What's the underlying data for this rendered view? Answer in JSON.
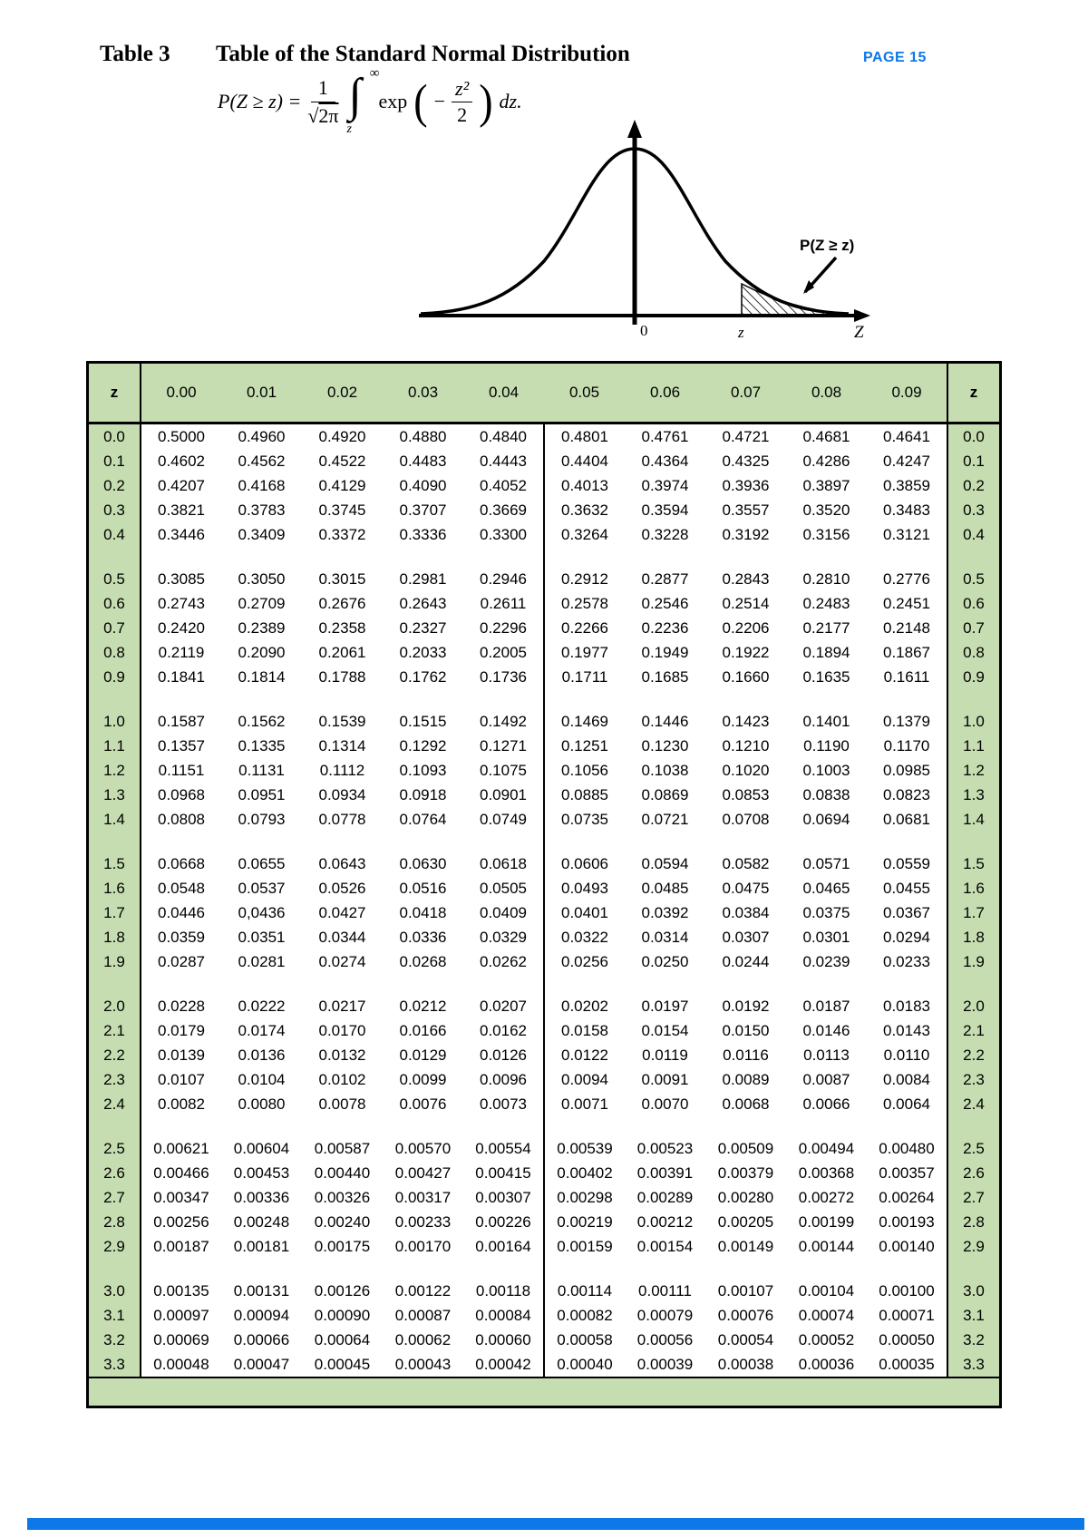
{
  "page": {
    "table_label": "Table 3",
    "title": "Table of the Standard Normal Distribution",
    "page_badge": "PAGE 15"
  },
  "formula": {
    "lhs": "P(Z ≥ z) =",
    "num": "1",
    "sqrt_sign": "√",
    "sqrt_arg": "2π",
    "int_sign": "∫",
    "int_upper": "∞",
    "int_lower": "z",
    "exp_label": "exp",
    "paren_open": "(",
    "minus": "−",
    "exp_num": "z²",
    "exp_den": "2",
    "paren_close": ")",
    "dz": "dz."
  },
  "diagram": {
    "area_label": "P(Z ≥ z)",
    "origin_label": "0",
    "z_label": "z",
    "axis_label": "Z"
  },
  "colors": {
    "table_green": "#c5ddb1",
    "accent_blue": "#0d78e8"
  },
  "table": {
    "corner_label": "z",
    "col_headers": [
      "0.00",
      "0.01",
      "0.02",
      "0.03",
      "0.04",
      "0.05",
      "0.06",
      "0.07",
      "0.08",
      "0.09"
    ],
    "groups": [
      {
        "rows": [
          {
            "z": "0.0",
            "values": [
              "0.5000",
              "0.4960",
              "0.4920",
              "0.4880",
              "0.4840",
              "0.4801",
              "0.4761",
              "0.4721",
              "0.4681",
              "0.4641"
            ]
          },
          {
            "z": "0.1",
            "values": [
              "0.4602",
              "0.4562",
              "0.4522",
              "0.4483",
              "0.4443",
              "0.4404",
              "0.4364",
              "0.4325",
              "0.4286",
              "0.4247"
            ]
          },
          {
            "z": "0.2",
            "values": [
              "0.4207",
              "0.4168",
              "0.4129",
              "0.4090",
              "0.4052",
              "0.4013",
              "0.3974",
              "0.3936",
              "0.3897",
              "0.3859"
            ]
          },
          {
            "z": "0.3",
            "values": [
              "0.3821",
              "0.3783",
              "0.3745",
              "0.3707",
              "0.3669",
              "0.3632",
              "0.3594",
              "0.3557",
              "0.3520",
              "0.3483"
            ]
          },
          {
            "z": "0.4",
            "values": [
              "0.3446",
              "0.3409",
              "0.3372",
              "0.3336",
              "0.3300",
              "0.3264",
              "0.3228",
              "0.3192",
              "0.3156",
              "0.3121"
            ]
          }
        ]
      },
      {
        "rows": [
          {
            "z": "0.5",
            "values": [
              "0.3085",
              "0.3050",
              "0.3015",
              "0.2981",
              "0.2946",
              "0.2912",
              "0.2877",
              "0.2843",
              "0.2810",
              "0.2776"
            ]
          },
          {
            "z": "0.6",
            "values": [
              "0.2743",
              "0.2709",
              "0.2676",
              "0.2643",
              "0.2611",
              "0.2578",
              "0.2546",
              "0.2514",
              "0.2483",
              "0.2451"
            ]
          },
          {
            "z": "0.7",
            "values": [
              "0.2420",
              "0.2389",
              "0.2358",
              "0.2327",
              "0.2296",
              "0.2266",
              "0.2236",
              "0.2206",
              "0.2177",
              "0.2148"
            ]
          },
          {
            "z": "0.8",
            "values": [
              "0.2119",
              "0.2090",
              "0.2061",
              "0.2033",
              "0.2005",
              "0.1977",
              "0.1949",
              "0.1922",
              "0.1894",
              "0.1867"
            ]
          },
          {
            "z": "0.9",
            "values": [
              "0.1841",
              "0.1814",
              "0.1788",
              "0.1762",
              "0.1736",
              "0.1711",
              "0.1685",
              "0.1660",
              "0.1635",
              "0.1611"
            ]
          }
        ]
      },
      {
        "rows": [
          {
            "z": "1.0",
            "values": [
              "0.1587",
              "0.1562",
              "0.1539",
              "0.1515",
              "0.1492",
              "0.1469",
              "0.1446",
              "0.1423",
              "0.1401",
              "0.1379"
            ]
          },
          {
            "z": "1.1",
            "values": [
              "0.1357",
              "0.1335",
              "0.1314",
              "0.1292",
              "0.1271",
              "0.1251",
              "0.1230",
              "0.1210",
              "0.1190",
              "0.1170"
            ]
          },
          {
            "z": "1.2",
            "values": [
              "0.1151",
              "0.1131",
              "0.1112",
              "0.1093",
              "0.1075",
              "0.1056",
              "0.1038",
              "0.1020",
              "0.1003",
              "0.0985"
            ]
          },
          {
            "z": "1.3",
            "values": [
              "0.0968",
              "0.0951",
              "0.0934",
              "0.0918",
              "0.0901",
              "0.0885",
              "0.0869",
              "0.0853",
              "0.0838",
              "0.0823"
            ]
          },
          {
            "z": "1.4",
            "values": [
              "0.0808",
              "0.0793",
              "0.0778",
              "0.0764",
              "0.0749",
              "0.0735",
              "0.0721",
              "0.0708",
              "0.0694",
              "0.0681"
            ]
          }
        ]
      },
      {
        "rows": [
          {
            "z": "1.5",
            "values": [
              "0.0668",
              "0.0655",
              "0.0643",
              "0.0630",
              "0.0618",
              "0.0606",
              "0.0594",
              "0.0582",
              "0.0571",
              "0.0559"
            ]
          },
          {
            "z": "1.6",
            "values": [
              "0.0548",
              "0.0537",
              "0.0526",
              "0.0516",
              "0.0505",
              "0.0493",
              "0.0485",
              "0.0475",
              "0.0465",
              "0.0455"
            ]
          },
          {
            "z": "1.7",
            "values": [
              "0.0446",
              "0,0436",
              "0.0427",
              "0.0418",
              "0.0409",
              "0.0401",
              "0.0392",
              "0.0384",
              "0.0375",
              "0.0367"
            ]
          },
          {
            "z": "1.8",
            "values": [
              "0.0359",
              "0.0351",
              "0.0344",
              "0.0336",
              "0.0329",
              "0.0322",
              "0.0314",
              "0.0307",
              "0.0301",
              "0.0294"
            ]
          },
          {
            "z": "1.9",
            "values": [
              "0.0287",
              "0.0281",
              "0.0274",
              "0.0268",
              "0.0262",
              "0.0256",
              "0.0250",
              "0.0244",
              "0.0239",
              "0.0233"
            ]
          }
        ]
      },
      {
        "rows": [
          {
            "z": "2.0",
            "values": [
              "0.0228",
              "0.0222",
              "0.0217",
              "0.0212",
              "0.0207",
              "0.0202",
              "0.0197",
              "0.0192",
              "0.0187",
              "0.0183"
            ]
          },
          {
            "z": "2.1",
            "values": [
              "0.0179",
              "0.0174",
              "0.0170",
              "0.0166",
              "0.0162",
              "0.0158",
              "0.0154",
              "0.0150",
              "0.0146",
              "0.0143"
            ]
          },
          {
            "z": "2.2",
            "values": [
              "0.0139",
              "0.0136",
              "0.0132",
              "0.0129",
              "0.0126",
              "0.0122",
              "0.0119",
              "0.0116",
              "0.0113",
              "0.0110"
            ]
          },
          {
            "z": "2.3",
            "values": [
              "0.0107",
              "0.0104",
              "0.0102",
              "0.0099",
              "0.0096",
              "0.0094",
              "0.0091",
              "0.0089",
              "0.0087",
              "0.0084"
            ]
          },
          {
            "z": "2.4",
            "values": [
              "0.0082",
              "0.0080",
              "0.0078",
              "0.0076",
              "0.0073",
              "0.0071",
              "0.0070",
              "0.0068",
              "0.0066",
              "0.0064"
            ]
          }
        ]
      },
      {
        "rows": [
          {
            "z": "2.5",
            "values": [
              "0.00621",
              "0.00604",
              "0.00587",
              "0.00570",
              "0.00554",
              "0.00539",
              "0.00523",
              "0.00509",
              "0.00494",
              "0.00480"
            ]
          },
          {
            "z": "2.6",
            "values": [
              "0.00466",
              "0.00453",
              "0.00440",
              "0.00427",
              "0.00415",
              "0.00402",
              "0.00391",
              "0.00379",
              "0.00368",
              "0.00357"
            ]
          },
          {
            "z": "2.7",
            "values": [
              "0.00347",
              "0.00336",
              "0.00326",
              "0.00317",
              "0.00307",
              "0.00298",
              "0.00289",
              "0.00280",
              "0.00272",
              "0.00264"
            ]
          },
          {
            "z": "2.8",
            "values": [
              "0.00256",
              "0.00248",
              "0.00240",
              "0.00233",
              "0.00226",
              "0.00219",
              "0.00212",
              "0.00205",
              "0.00199",
              "0.00193"
            ]
          },
          {
            "z": "2.9",
            "values": [
              "0.00187",
              "0.00181",
              "0.00175",
              "0.00170",
              "0.00164",
              "0.00159",
              "0.00154",
              "0.00149",
              "0.00144",
              "0.00140"
            ]
          }
        ]
      },
      {
        "rows": [
          {
            "z": "3.0",
            "values": [
              "0.00135",
              "0.00131",
              "0.00126",
              "0.00122",
              "0.00118",
              "0.00114",
              "0.00111",
              "0.00107",
              "0.00104",
              "0.00100"
            ]
          },
          {
            "z": "3.1",
            "values": [
              "0.00097",
              "0.00094",
              "0.00090",
              "0.00087",
              "0.00084",
              "0.00082",
              "0.00079",
              "0.00076",
              "0.00074",
              "0.00071"
            ]
          },
          {
            "z": "3.2",
            "values": [
              "0.00069",
              "0.00066",
              "0.00064",
              "0.00062",
              "0.00060",
              "0.00058",
              "0.00056",
              "0.00054",
              "0.00052",
              "0.00050"
            ]
          },
          {
            "z": "3.3",
            "values": [
              "0.00048",
              "0.00047",
              "0.00045",
              "0.00043",
              "0.00042",
              "0.00040",
              "0.00039",
              "0.00038",
              "0.00036",
              "0.00035"
            ]
          }
        ]
      }
    ]
  }
}
